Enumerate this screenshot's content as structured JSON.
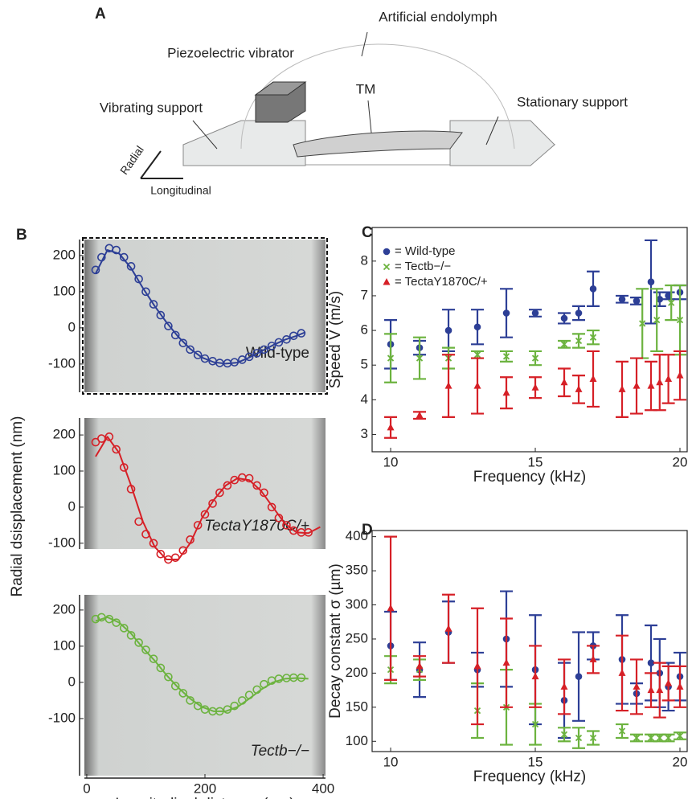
{
  "panel_a": {
    "letter": "A",
    "labels": {
      "endolymph": "Artificial endolymph",
      "vibrator": "Piezoelectric vibrator",
      "tm": "TM",
      "vibrating": "Vibrating support",
      "stationary": "Stationary support",
      "radial": "Radial",
      "longitudinal": "Longitudinal"
    }
  },
  "chart_data": [
    {
      "type": "scatter",
      "letter": "B",
      "label": "Wild-type",
      "xlim": [
        -4,
        404
      ],
      "ylim": [
        -178,
        244
      ],
      "yticks": [
        -100,
        0,
        100,
        200
      ],
      "series": [
        {
          "color": "#2d3f96",
          "marker": "circle",
          "x": [
            15,
            25,
            38,
            50,
            63,
            75,
            88,
            100,
            113,
            125,
            138,
            150,
            163,
            175,
            188,
            200,
            213,
            225,
            238,
            250,
            263,
            275,
            288,
            300,
            313,
            325,
            338,
            350,
            363
          ],
          "values": [
            160,
            195,
            220,
            215,
            195,
            170,
            135,
            100,
            65,
            35,
            5,
            -20,
            -42,
            -60,
            -75,
            -85,
            -92,
            -97,
            -98,
            -95,
            -88,
            -80,
            -70,
            -60,
            -50,
            -40,
            -32,
            -22,
            -15
          ]
        },
        {
          "color": "#2d3f96",
          "line": true,
          "x": [
            15,
            35,
            55,
            75,
            95,
            115,
            135,
            155,
            175,
            195,
            215,
            235,
            255,
            275,
            295,
            315,
            335,
            355,
            370
          ],
          "values": [
            150,
            215,
            205,
            165,
            110,
            60,
            15,
            -25,
            -58,
            -82,
            -95,
            -99,
            -96,
            -82,
            -65,
            -48,
            -33,
            -22,
            -12
          ]
        }
      ]
    },
    {
      "type": "scatter",
      "label": "TectaY1870C/+",
      "ylabel": "Radial dsisplacement (nm)",
      "xlim": [
        -4,
        404
      ],
      "ylim": [
        -116,
        247
      ],
      "yticks": [
        -100,
        0,
        100,
        200
      ],
      "series": [
        {
          "color": "#d62027",
          "marker": "circle",
          "x": [
            15,
            25,
            38,
            50,
            63,
            75,
            88,
            100,
            113,
            125,
            138,
            150,
            163,
            175,
            188,
            200,
            213,
            225,
            238,
            250,
            263,
            275,
            288,
            300,
            313,
            325,
            338,
            350,
            363,
            375
          ],
          "values": [
            180,
            190,
            195,
            160,
            110,
            50,
            -40,
            -75,
            -100,
            -130,
            -145,
            -140,
            -120,
            -90,
            -50,
            -20,
            10,
            40,
            60,
            75,
            82,
            80,
            60,
            40,
            0,
            -30,
            -50,
            -65,
            -70,
            -70
          ]
        },
        {
          "color": "#d62027",
          "line": true,
          "x": [
            15,
            35,
            55,
            75,
            95,
            115,
            135,
            155,
            175,
            195,
            215,
            235,
            255,
            275,
            295,
            315,
            335,
            355,
            375,
            395
          ],
          "values": [
            140,
            195,
            150,
            60,
            -40,
            -110,
            -145,
            -145,
            -100,
            -30,
            20,
            60,
            80,
            75,
            45,
            0,
            -45,
            -70,
            -72,
            -55
          ]
        }
      ]
    },
    {
      "type": "scatter",
      "label": "Tectb−/−",
      "xlabel": "Longitudinal distance (µm)",
      "xlim": [
        -4,
        404
      ],
      "ylim": [
        -258,
        242
      ],
      "yticks": [
        -100,
        0,
        100,
        200
      ],
      "xticks": [
        0,
        200,
        400
      ],
      "series": [
        {
          "color": "#6cb33f",
          "marker": "circle",
          "x": [
            15,
            25,
            38,
            50,
            63,
            75,
            88,
            100,
            113,
            125,
            138,
            150,
            163,
            175,
            188,
            200,
            213,
            225,
            238,
            250,
            263,
            275,
            288,
            300,
            313,
            325,
            338,
            350,
            363
          ],
          "values": [
            175,
            180,
            175,
            165,
            150,
            130,
            110,
            90,
            65,
            40,
            15,
            -10,
            -30,
            -50,
            -65,
            -75,
            -80,
            -80,
            -75,
            -65,
            -50,
            -35,
            -20,
            -5,
            5,
            10,
            12,
            13,
            13
          ]
        },
        {
          "color": "#6cb33f",
          "line": true,
          "x": [
            15,
            35,
            55,
            75,
            95,
            115,
            135,
            155,
            175,
            195,
            215,
            235,
            255,
            275,
            295,
            315,
            335,
            355,
            375
          ],
          "values": [
            170,
            180,
            165,
            135,
            95,
            60,
            20,
            -15,
            -45,
            -68,
            -80,
            -80,
            -68,
            -45,
            -20,
            0,
            10,
            12,
            10
          ]
        }
      ]
    },
    {
      "type": "errorbar",
      "letter": "C",
      "xlabel": "Frequency (kHz)",
      "ylabel": "Speed V (m/s)",
      "xlim": [
        9.36,
        20.25
      ],
      "ylim": [
        2.5,
        8.97
      ],
      "xticks": [
        10,
        15,
        20
      ],
      "yticks": [
        3,
        4,
        5,
        6,
        7,
        8
      ],
      "series": [
        {
          "name": "= Wild-type",
          "color": "#2d3f96",
          "marker": "circle",
          "x": [
            10,
            11,
            12,
            13,
            14,
            15,
            16,
            16.5,
            17,
            18,
            18.5,
            19,
            19.3,
            19.6,
            20
          ],
          "values": [
            5.6,
            5.5,
            6.0,
            6.1,
            6.5,
            6.5,
            6.35,
            6.5,
            7.2,
            6.9,
            6.85,
            7.4,
            6.9,
            7.0,
            7.1
          ],
          "errors": [
            0.7,
            0.2,
            0.6,
            0.5,
            0.7,
            0.1,
            0.15,
            0.2,
            0.5,
            0.1,
            0.1,
            1.2,
            0.2,
            0.1,
            0.2
          ]
        },
        {
          "name": "= Tectb−/−",
          "color": "#6cb33f",
          "marker": "x",
          "x": [
            10,
            11,
            12,
            13,
            14,
            15,
            16,
            16.5,
            17,
            18.7,
            19.2,
            19.7,
            20
          ],
          "values": [
            5.2,
            5.2,
            5.2,
            5.3,
            5.25,
            5.2,
            5.6,
            5.7,
            5.8,
            6.2,
            6.3,
            6.8,
            6.3
          ],
          "errors": [
            0.7,
            0.6,
            0.3,
            0.1,
            0.15,
            0.2,
            0.1,
            0.2,
            0.2,
            1.0,
            0.9,
            0.5,
            1.0
          ]
        },
        {
          "name": "= TectaY1870C/+",
          "color": "#d62027",
          "marker": "triangle",
          "x": [
            10,
            11,
            12,
            13,
            14,
            15,
            16,
            16.5,
            17,
            18,
            18.5,
            19,
            19.3,
            19.6,
            20
          ],
          "values": [
            3.2,
            3.55,
            4.4,
            4.4,
            4.2,
            4.35,
            4.5,
            4.3,
            4.6,
            4.3,
            4.4,
            4.4,
            4.5,
            4.6,
            4.7
          ],
          "errors": [
            0.3,
            0.1,
            0.9,
            0.8,
            0.45,
            0.3,
            0.4,
            0.4,
            0.8,
            0.8,
            0.8,
            0.7,
            0.8,
            0.7,
            0.7
          ]
        }
      ]
    },
    {
      "type": "errorbar",
      "letter": "D",
      "xlabel": "Frequency (kHz)",
      "ylabel": "Decay constant σ (µm)",
      "xlim": [
        9.36,
        20.25
      ],
      "ylim": [
        85,
        409
      ],
      "xticks": [
        10,
        15,
        20
      ],
      "yticks": [
        100,
        150,
        200,
        250,
        300,
        350,
        400
      ],
      "series": [
        {
          "color": "#2d3f96",
          "marker": "circle",
          "x": [
            10,
            11,
            12,
            13,
            14,
            15,
            16,
            16.5,
            17,
            18,
            18.5,
            19,
            19.3,
            19.6,
            20
          ],
          "values": [
            240,
            205,
            260,
            205,
            250,
            205,
            160,
            195,
            240,
            220,
            170,
            215,
            200,
            180,
            195
          ],
          "errors": [
            50,
            40,
            45,
            25,
            70,
            80,
            55,
            65,
            20,
            65,
            15,
            55,
            50,
            35,
            35
          ]
        },
        {
          "color": "#6cb33f",
          "marker": "x",
          "x": [
            10,
            11,
            13,
            14,
            15,
            16,
            16.5,
            17,
            18,
            18.5,
            19,
            19.3,
            19.6,
            20
          ],
          "values": [
            205,
            205,
            145,
            150,
            125,
            110,
            105,
            105,
            115,
            105,
            105,
            105,
            105,
            108
          ],
          "errors": [
            20,
            15,
            40,
            55,
            30,
            10,
            15,
            10,
            10,
            5,
            5,
            5,
            5,
            5
          ]
        },
        {
          "color": "#d62027",
          "marker": "triangle",
          "x": [
            10,
            11,
            12,
            13,
            14,
            15,
            16,
            17,
            18,
            18.5,
            19,
            19.3,
            19.6,
            20
          ],
          "values": [
            295,
            210,
            265,
            210,
            215,
            195,
            180,
            220,
            200,
            180,
            175,
            175,
            185,
            180
          ],
          "errors": [
            105,
            15,
            50,
            85,
            65,
            45,
            40,
            20,
            55,
            40,
            25,
            40,
            25,
            30
          ]
        }
      ]
    }
  ]
}
